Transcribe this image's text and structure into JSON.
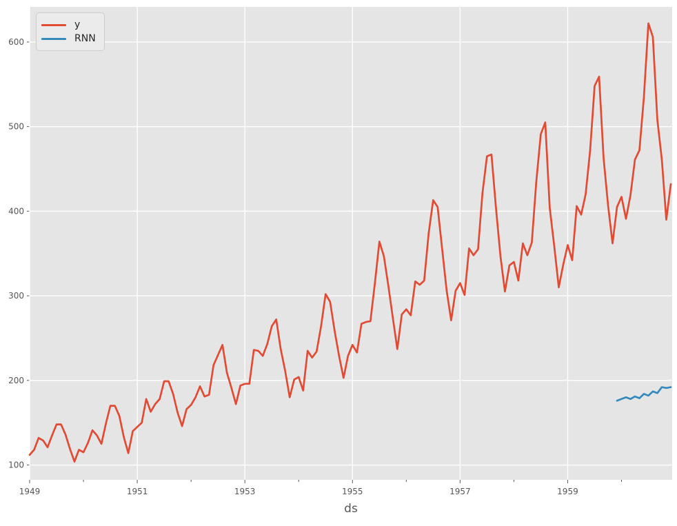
{
  "chart_data": {
    "type": "line",
    "title": "",
    "xlabel": "ds",
    "ylabel": "",
    "x_start_year": 1949,
    "x_tick_years": [
      1949,
      1951,
      1953,
      1955,
      1957,
      1959
    ],
    "x_minor_tick_years": [
      1950,
      1952,
      1954,
      1956,
      1958,
      1960
    ],
    "y_ticks": [
      100,
      200,
      300,
      400,
      500,
      600
    ],
    "xlim_months": [
      0,
      143.3
    ],
    "ylim": [
      82.5,
      641.5
    ],
    "grid": true,
    "legend_position": "upper-left",
    "colors": {
      "figure_bg": "#ffffff",
      "axes_bg": "#e5e5e5",
      "grid": "#ffffff",
      "tick": "#555555",
      "tick_label": "#555555",
      "series_y": "#e24a33",
      "series_rnn": "#348abd"
    },
    "series": [
      {
        "name": "y",
        "color": "#e24a33",
        "start_month": 0,
        "values": [
          112,
          118,
          132,
          129,
          121,
          135,
          148,
          148,
          136,
          119,
          104,
          118,
          115,
          126,
          141,
          135,
          125,
          149,
          170,
          170,
          158,
          133,
          114,
          140,
          145,
          150,
          178,
          163,
          172,
          178,
          199,
          199,
          184,
          162,
          146,
          166,
          171,
          180,
          193,
          181,
          183,
          218,
          230,
          242,
          209,
          191,
          172,
          194,
          196,
          196,
          236,
          235,
          229,
          243,
          264,
          272,
          237,
          211,
          180,
          201,
          204,
          188,
          235,
          227,
          234,
          264,
          302,
          293,
          259,
          229,
          203,
          229,
          242,
          233,
          267,
          269,
          270,
          315,
          364,
          347,
          312,
          274,
          237,
          278,
          284,
          277,
          317,
          313,
          318,
          374,
          413,
          405,
          355,
          306,
          271,
          306,
          315,
          301,
          356,
          348,
          355,
          422,
          465,
          467,
          404,
          347,
          305,
          336,
          340,
          318,
          362,
          348,
          363,
          435,
          491,
          505,
          404,
          359,
          310,
          337,
          360,
          342,
          406,
          396,
          420,
          472,
          548,
          559,
          463,
          407,
          362,
          405,
          417,
          391,
          419,
          461,
          472,
          535,
          622,
          606,
          508,
          461,
          390,
          432
        ]
      },
      {
        "name": "RNN",
        "color": "#348abd",
        "start_month": 131,
        "values": [
          176,
          178,
          180,
          178,
          181,
          179,
          184,
          182,
          187,
          185,
          192,
          191,
          192
        ]
      }
    ]
  }
}
